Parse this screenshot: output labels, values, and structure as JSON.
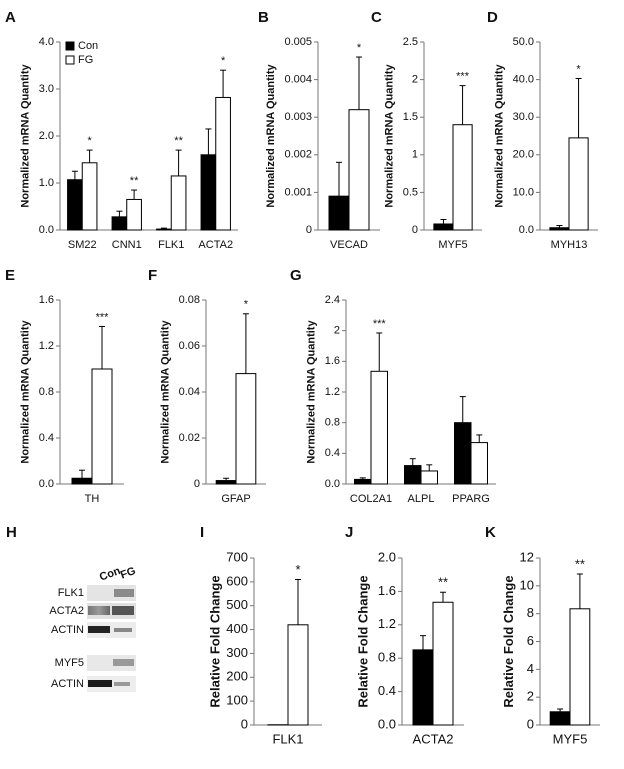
{
  "chart_data": [
    {
      "type": "bar",
      "label": "A",
      "ylabel": "Normalized mRNA Quantity",
      "categories": [
        "SM22",
        "CNN1",
        "FLK1",
        "ACTA2"
      ],
      "series": [
        {
          "name": "Con",
          "color": "#000000",
          "values": [
            1.07,
            0.28,
            0.02,
            1.6
          ],
          "errors": [
            0.18,
            0.12,
            0.02,
            0.55
          ]
        },
        {
          "name": "FG",
          "color": "#ffffff",
          "values": [
            1.43,
            0.65,
            1.15,
            2.82
          ],
          "errors": [
            0.27,
            0.2,
            0.55,
            0.58
          ]
        }
      ],
      "significance": [
        "*",
        "**",
        "**",
        "*"
      ],
      "ylim": [
        0,
        4
      ],
      "yticks": [
        {
          "value": 0,
          "label": "0.0"
        },
        {
          "value": 1,
          "label": "1.0"
        },
        {
          "value": 2,
          "label": "2.0"
        },
        {
          "value": 3,
          "label": "3.0"
        },
        {
          "value": 4,
          "label": "4.0"
        }
      ]
    },
    {
      "type": "bar",
      "label": "B",
      "ylabel": "Normalized mRNA Quantity",
      "categories": [
        "VECAD"
      ],
      "series": [
        {
          "color": "#000000",
          "values": [
            0.0009
          ],
          "errors": [
            0.0009
          ]
        },
        {
          "color": "#ffffff",
          "values": [
            0.0032
          ],
          "errors": [
            0.0014
          ]
        }
      ],
      "significance": [
        "*"
      ],
      "ylim": [
        0,
        0.005
      ],
      "yticks": [
        0,
        0.001,
        0.002,
        0.003,
        0.004,
        0.005
      ]
    },
    {
      "type": "bar",
      "label": "C",
      "ylabel": "Normalized mRNA Quantity",
      "categories": [
        "MYF5"
      ],
      "series": [
        {
          "color": "#000000",
          "values": [
            0.08
          ],
          "errors": [
            0.06
          ]
        },
        {
          "color": "#ffffff",
          "values": [
            1.4
          ],
          "errors": [
            0.52
          ]
        }
      ],
      "significance": [
        "***"
      ],
      "ylim": [
        0,
        2.5
      ],
      "yticks": [
        0,
        0.5,
        1,
        1.5,
        2,
        2.5
      ]
    },
    {
      "type": "bar",
      "label": "D",
      "ylabel": "Normalized mRNA Quantity",
      "categories": [
        "MYH13"
      ],
      "series": [
        {
          "color": "#000000",
          "values": [
            0.6
          ],
          "errors": [
            0.6
          ]
        },
        {
          "color": "#ffffff",
          "values": [
            24.5
          ],
          "errors": [
            15.8
          ]
        }
      ],
      "significance": [
        "*"
      ],
      "ylim": [
        0,
        50
      ],
      "yticks": [
        {
          "value": 0,
          "label": "0.0"
        },
        {
          "value": 10,
          "label": "10.0"
        },
        {
          "value": 20,
          "label": "20.0"
        },
        {
          "value": 30,
          "label": "30.0"
        },
        {
          "value": 40,
          "label": "40.0"
        },
        {
          "value": 50,
          "label": "50.0"
        }
      ]
    },
    {
      "type": "bar",
      "label": "E",
      "ylabel": "Normalized mRNA Quantity",
      "categories": [
        "TH"
      ],
      "series": [
        {
          "color": "#000000",
          "values": [
            0.05
          ],
          "errors": [
            0.07
          ]
        },
        {
          "color": "#ffffff",
          "values": [
            1.0
          ],
          "errors": [
            0.37
          ]
        }
      ],
      "significance": [
        "***"
      ],
      "ylim": [
        0,
        1.6
      ],
      "yticks": [
        {
          "value": 0,
          "label": "0.0"
        },
        0.4,
        0.8,
        1.2,
        1.6
      ]
    },
    {
      "type": "bar",
      "label": "F",
      "ylabel": "Normalized mRNA Quantity",
      "categories": [
        "GFAP"
      ],
      "series": [
        {
          "color": "#000000",
          "values": [
            0.0015
          ],
          "errors": [
            0.001
          ]
        },
        {
          "color": "#ffffff",
          "values": [
            0.048
          ],
          "errors": [
            0.026
          ]
        }
      ],
      "significance": [
        "*"
      ],
      "ylim": [
        0,
        0.08
      ],
      "yticks": [
        0,
        0.02,
        0.04,
        0.06,
        0.08
      ]
    },
    {
      "type": "bar",
      "label": "G",
      "ylabel": "Normalized mRNA Quantity",
      "categories": [
        "COL2A1",
        "ALPL",
        "PPARG"
      ],
      "series": [
        {
          "color": "#000000",
          "values": [
            0.06,
            0.24,
            0.8
          ],
          "errors": [
            0.02,
            0.09,
            0.34
          ]
        },
        {
          "color": "#ffffff",
          "values": [
            1.47,
            0.17,
            0.54
          ],
          "errors": [
            0.5,
            0.08,
            0.1
          ]
        }
      ],
      "significance": [
        "***",
        null,
        null
      ],
      "ylim": [
        0,
        2.4
      ],
      "yticks": [
        {
          "value": 0,
          "label": "0.0"
        },
        0.4,
        0.8,
        1.2,
        1.6,
        2.0,
        2.4
      ]
    },
    {
      "type": "bar",
      "label": "I",
      "ylabel": "Relative Fold Change",
      "categories": [
        "FLK1"
      ],
      "series": [
        {
          "color": "#000000",
          "values": [
            1
          ],
          "errors": [
            null
          ]
        },
        {
          "color": "#ffffff",
          "values": [
            420
          ],
          "errors": [
            190
          ]
        }
      ],
      "significance": [
        "*"
      ],
      "ylim": [
        0,
        700
      ],
      "yticks": [
        0,
        100,
        200,
        300,
        400,
        500,
        600,
        700
      ]
    },
    {
      "type": "bar",
      "label": "J",
      "ylabel": "Relative Fold Change",
      "categories": [
        "ACTA2"
      ],
      "series": [
        {
          "color": "#000000",
          "values": [
            0.9
          ],
          "errors": [
            0.17
          ]
        },
        {
          "color": "#ffffff",
          "values": [
            1.47
          ],
          "errors": [
            0.12
          ]
        }
      ],
      "significance": [
        "**"
      ],
      "ylim": [
        0,
        2
      ],
      "yticks": [
        {
          "value": 0,
          "label": "0.0"
        },
        0.4,
        0.8,
        1.2,
        1.6,
        {
          "value": 2,
          "label": "2.0"
        }
      ]
    },
    {
      "type": "bar",
      "label": "K",
      "ylabel": "Relative Fold Change",
      "categories": [
        "MYF5"
      ],
      "series": [
        {
          "color": "#000000",
          "values": [
            0.95
          ],
          "errors": [
            0.2
          ]
        },
        {
          "color": "#ffffff",
          "values": [
            8.35
          ],
          "errors": [
            2.5
          ]
        }
      ],
      "significance": [
        "**"
      ],
      "ylim": [
        0,
        12
      ],
      "yticks": [
        0,
        2,
        4,
        6,
        8,
        10,
        12
      ]
    }
  ],
  "blot": {
    "label": "H",
    "lanes": [
      "Con",
      "FG"
    ],
    "rows": [
      "FLK1",
      "ACTA2",
      "ACTIN",
      "MYF5",
      "ACTIN"
    ]
  }
}
